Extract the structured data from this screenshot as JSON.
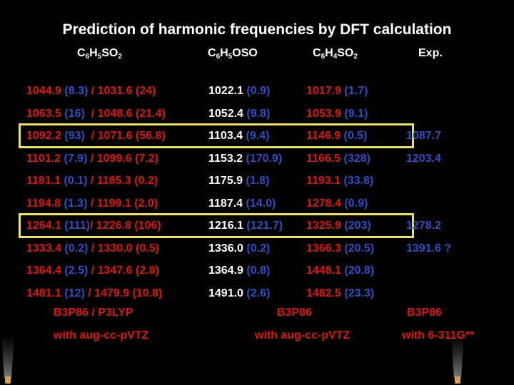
{
  "title": "Prediction of harmonic frequencies by DFT calculation",
  "headers": {
    "col1": {
      "a": "C",
      "s1": "6",
      "b": "H",
      "s2": "5",
      "c": "SO",
      "s3": "2"
    },
    "col2": {
      "a": "C",
      "s1": "6",
      "b": "H",
      "s2": "5",
      "c": "OSO"
    },
    "col3": {
      "a": "C",
      "s1": "6",
      "b": "H",
      "s2": "4",
      "c": "SO",
      "s3": "2"
    },
    "col4": "Exp."
  },
  "rows": [
    {
      "c1a": "1044.9 ",
      "c1b": "(8.3)",
      "c1c": " / 1031.6 ",
      "c1d": "(24)",
      "c2a": "1022.1 ",
      "c2b": "(0.9)",
      "c3a": "1017.9 ",
      "c3b": "(1.7)",
      "c4": ""
    },
    {
      "c1a": "1063.5 ",
      "c1b": "(16)",
      "c1c": "  / 1048.6 ",
      "c1d": "(21.4)",
      "c2a": "1052.4 ",
      "c2b": "(9.8)",
      "c3a": "1053.9 ",
      "c3b": "(9.1)",
      "c4": ""
    },
    {
      "c1a": "1092.2 ",
      "c1b": "(93)",
      "c1c": "  / 1071.6 ",
      "c1d": "(56.8)",
      "c2a": "1103.4 ",
      "c2b": "(9.4)",
      "c3a": "1146.9 ",
      "c3b": "(0.5)",
      "c4": "1087.7"
    },
    {
      "c1a": "1101.2 ",
      "c1b": "(7.9)",
      "c1c": " / 1099.6 ",
      "c1d": "(7.2)",
      "c2a": "1153.2 ",
      "c2b": "(170.9)",
      "c3a": "1166.5 ",
      "c3b": "(328)",
      "c4": "1203.4"
    },
    {
      "c1a": "1181.1 ",
      "c1b": "(0.1)",
      "c1c": " / 1185.3 ",
      "c1d": "(0.2)",
      "c2a": "1175.9 ",
      "c2b": "(1.8)",
      "c3a": "1193.1 ",
      "c3b": "(33.8)",
      "c4": ""
    },
    {
      "c1a": "1194.8 ",
      "c1b": "(1.3)",
      "c1c": " / 1199.1 ",
      "c1d": "(2.0)",
      "c2a": "1187.4 ",
      "c2b": "(14.0)",
      "c3a": "1278.4 ",
      "c3b": "(0.9)",
      "c4": ""
    },
    {
      "c1a": "1264.1 ",
      "c1b": "(111)",
      "c1c": "/ 1226.8 ",
      "c1d": "(106)",
      "c2a": "1216.1 ",
      "c2b": "(121.7)",
      "c3a": "1325.9 ",
      "c3b": "(203)",
      "c4": "1278.2"
    },
    {
      "c1a": "1333.4 ",
      "c1b": "(0.2)",
      "c1c": " / 1330.0 ",
      "c1d": "(0.5)",
      "c2a": "1336.0 ",
      "c2b": "(0.2)",
      "c3a": "1366.3 ",
      "c3b": "(20.5)",
      "c4": "1391.6 ?"
    },
    {
      "c1a": "1364.4 ",
      "c1b": "(2.5)",
      "c1c": " / 1347.6 ",
      "c1d": "(2.8)",
      "c2a": "1364.9 ",
      "c2b": "(0.8)",
      "c3a": "1448.1 ",
      "c3b": "(20.8)",
      "c4": ""
    },
    {
      "c1a": "1481.1 ",
      "c1b": "(12)",
      "c1c": " / 1479.9 ",
      "c1d": "(10.8)",
      "c2a": "1491.0 ",
      "c2b": "(2.6)",
      "c3a": "1482.5 ",
      "c3b": "(23.3)",
      "c4": ""
    }
  ],
  "footer": {
    "method1": "B3P86 / P3LYP",
    "method2": "B3P86",
    "method3": "B3P86",
    "basis1": "with aug-cc-pVTZ",
    "basis2": "with aug-cc-pVTZ",
    "basis3": "with 6-311G**"
  },
  "colors": {
    "values": "#e0140a",
    "intensities": "#2a4fc8",
    "highlight": "#ede54a"
  }
}
